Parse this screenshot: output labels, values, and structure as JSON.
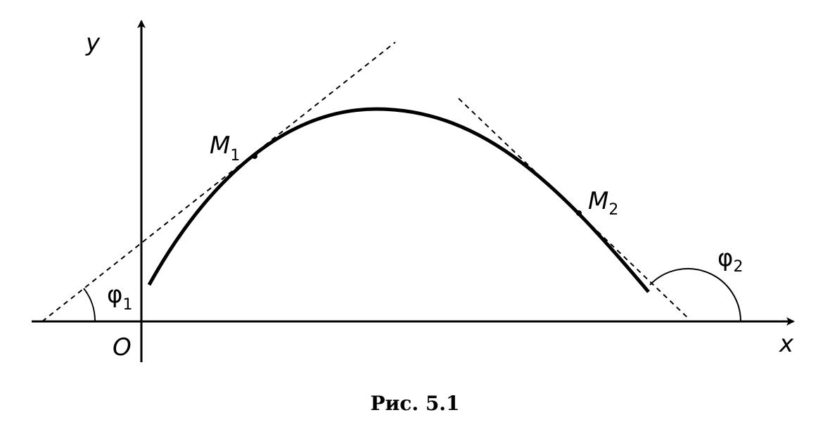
{
  "axes": {
    "x_label": "x",
    "y_label": "y",
    "origin_label": "O"
  },
  "points": [
    {
      "base": "M",
      "sub": "1"
    },
    {
      "base": "M",
      "sub": "2"
    }
  ],
  "angles": [
    {
      "base": "φ",
      "sub": "1"
    },
    {
      "base": "φ",
      "sub": "2"
    }
  ],
  "caption": "Рис. 5.1"
}
